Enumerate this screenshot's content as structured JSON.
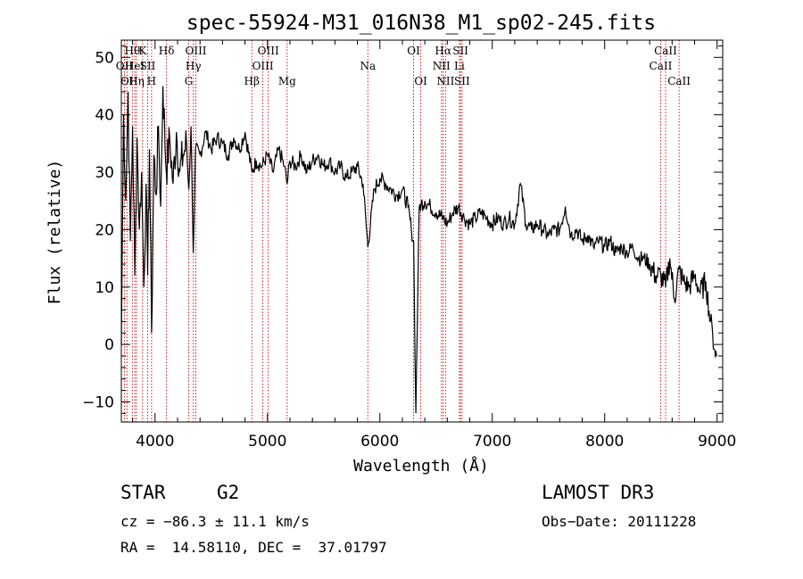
{
  "chart_data": {
    "type": "line",
    "title": "spec-55924-M31_016N38_M1_sp02-245.fits",
    "xlabel": "Wavelength (Å)",
    "ylabel": "Flux (relative)",
    "xlim": [
      3700,
      9050
    ],
    "ylim": [
      -13.5,
      53
    ],
    "xticks": [
      4000,
      5000,
      6000,
      7000,
      8000,
      9000
    ],
    "yticks": [
      -10,
      0,
      10,
      20,
      30,
      40,
      50
    ],
    "grid": false,
    "series": [
      {
        "name": "spectrum",
        "x": [
          3700,
          3720,
          3740,
          3760,
          3780,
          3800,
          3820,
          3840,
          3860,
          3880,
          3900,
          3920,
          3934,
          3950,
          3969,
          3990,
          4010,
          4030,
          4050,
          4070,
          4100,
          4130,
          4160,
          4190,
          4220,
          4250,
          4280,
          4300,
          4320,
          4340,
          4360,
          4400,
          4450,
          4500,
          4550,
          4600,
          4650,
          4700,
          4750,
          4800,
          4861,
          4900,
          4950,
          5000,
          5050,
          5100,
          5150,
          5175,
          5200,
          5250,
          5300,
          5350,
          5400,
          5450,
          5500,
          5550,
          5600,
          5650,
          5700,
          5750,
          5800,
          5850,
          5893,
          5950,
          6000,
          6050,
          6100,
          6150,
          6200,
          6250,
          6280,
          6300,
          6320,
          6350,
          6400,
          6450,
          6500,
          6563,
          6600,
          6650,
          6700,
          6750,
          6800,
          6850,
          6900,
          6950,
          7000,
          7050,
          7100,
          7150,
          7200,
          7250,
          7300,
          7350,
          7400,
          7450,
          7500,
          7550,
          7600,
          7650,
          7700,
          7750,
          7800,
          7850,
          7900,
          7950,
          8000,
          8050,
          8100,
          8150,
          8200,
          8250,
          8300,
          8350,
          8400,
          8450,
          8500,
          8542,
          8580,
          8620,
          8662,
          8700,
          8750,
          8800,
          8850,
          8900,
          8940,
          8960,
          8980,
          8995
        ],
        "y": [
          0,
          40,
          25,
          44,
          18,
          38,
          12,
          36,
          20,
          30,
          10,
          28,
          12,
          34,
          2,
          33,
          26,
          38,
          24,
          45,
          30,
          36,
          28,
          37,
          30,
          33,
          35,
          27,
          38,
          16,
          34,
          33,
          37,
          34,
          36,
          35,
          33,
          36,
          34,
          37,
          30,
          32,
          31,
          33,
          30,
          34,
          31,
          28,
          32,
          31,
          33,
          30,
          32,
          33,
          31,
          32,
          30,
          31,
          29,
          30,
          31,
          28,
          17,
          27,
          29,
          28,
          27,
          26,
          27,
          24,
          20,
          18,
          -12,
          24,
          25,
          24,
          23,
          22,
          21,
          23,
          24,
          22,
          21,
          22,
          23,
          22,
          21,
          22,
          21,
          22,
          21,
          28,
          21,
          20,
          21,
          20,
          19,
          20,
          20,
          24,
          19,
          20,
          18,
          19,
          17,
          18,
          17,
          18,
          16,
          17,
          16,
          17,
          15,
          15,
          14,
          12,
          12,
          10,
          15,
          8,
          13,
          11,
          10,
          12,
          9,
          11,
          4,
          2,
          -1,
          -2
        ]
      }
    ],
    "lines": [
      {
        "x": 3727,
        "label": "OII",
        "row": 1
      },
      {
        "x": 3750,
        "label": "OI",
        "row": 2
      },
      {
        "x": 3798,
        "label": "Hθ",
        "row": 0
      },
      {
        "x": 3820,
        "label": "HeI",
        "row": 1
      },
      {
        "x": 3835,
        "label": "Hη",
        "row": 2
      },
      {
        "x": 3889,
        "label": "K",
        "row": 0
      },
      {
        "x": 3934,
        "label": "SII",
        "row": 1
      },
      {
        "x": 3969,
        "label": "H",
        "row": 2
      },
      {
        "x": 4102,
        "label": "Hδ",
        "row": 0
      },
      {
        "x": 4300,
        "label": "G",
        "row": 2
      },
      {
        "x": 4341,
        "label": "Hγ",
        "row": 1
      },
      {
        "x": 4363,
        "label": "OIII",
        "row": 0
      },
      {
        "x": 4861,
        "label": "Hβ",
        "row": 2
      },
      {
        "x": 4959,
        "label": "OIII",
        "row": 1
      },
      {
        "x": 5007,
        "label": "OIII",
        "row": 0
      },
      {
        "x": 5175,
        "label": "Mg",
        "row": 2
      },
      {
        "x": 5893,
        "label": "Na",
        "row": 1
      },
      {
        "x": 6300,
        "label": "OI",
        "row": 0
      },
      {
        "x": 6364,
        "label": "OI",
        "row": 2
      },
      {
        "x": 6548,
        "label": "NII",
        "row": 1
      },
      {
        "x": 6563,
        "label": "Hα",
        "row": 0
      },
      {
        "x": 6584,
        "label": "NII",
        "row": 2
      },
      {
        "x": 6708,
        "label": "Li",
        "row": 1
      },
      {
        "x": 6717,
        "label": "SII",
        "row": 0
      },
      {
        "x": 6731,
        "label": "SII",
        "row": 2
      },
      {
        "x": 8498,
        "label": "CaII",
        "row": 1
      },
      {
        "x": 8542,
        "label": "CaII",
        "row": 0
      },
      {
        "x": 8662,
        "label": "CaII",
        "row": 2
      }
    ]
  },
  "info": {
    "class": "STAR",
    "subclass": "G2",
    "survey": "LAMOST DR3",
    "cz": "cz = −86.3 ± 11.1 km/s",
    "obsdate": "Obs−Date: 20111228",
    "radec": "RA =  14.58110, DEC =  37.01797"
  },
  "colors": {
    "axis": "#000000",
    "spectrum": "#000000",
    "lines": "#cc0000"
  }
}
